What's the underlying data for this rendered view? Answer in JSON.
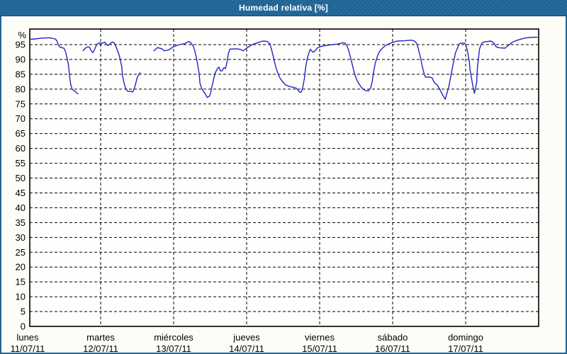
{
  "window": {
    "title": "Humedad relativa [%]"
  },
  "colors": {
    "titlebar_bg": "#1e6598",
    "window_border": "#1e6598",
    "title_text": "#ffffff",
    "content_bg": "#fdfdf8",
    "plot_bg": "#fefefc",
    "frame": "#000000",
    "grid": "#000000",
    "line": "#2424c8",
    "label_text": "#000000"
  },
  "chart_data": {
    "type": "line",
    "title": "Humedad relativa [%]",
    "ylabel": "%",
    "ylim": [
      0,
      100.3
    ],
    "y_ticks": [
      0,
      5,
      10,
      15,
      20,
      25,
      30,
      35,
      40,
      45,
      50,
      55,
      60,
      65,
      70,
      75,
      80,
      85,
      90,
      95
    ],
    "grid": "dashed",
    "legend": false,
    "x_unit": "days from lunes 11/07/11 00:00",
    "xlim": [
      0.03,
      7
    ],
    "x_days": [
      {
        "name": "lunes",
        "date": "11/07/11"
      },
      {
        "name": "martes",
        "date": "12/07/11"
      },
      {
        "name": "miércoles",
        "date": "13/07/11"
      },
      {
        "name": "jueves",
        "date": "14/07/11"
      },
      {
        "name": "viernes",
        "date": "15/07/11"
      },
      {
        "name": "sábado",
        "date": "16/07/11"
      },
      {
        "name": "domingo",
        "date": "17/07/11"
      }
    ],
    "series": [
      {
        "name": "Humedad relativa",
        "units": "%",
        "color": "#2424c8",
        "segments": [
          [
            [
              0.03,
              96.8
            ],
            [
              0.1,
              96.9
            ],
            [
              0.2,
              97.2
            ],
            [
              0.3,
              97.3
            ],
            [
              0.38,
              96.9
            ],
            [
              0.4,
              96.3
            ],
            [
              0.42,
              95.0
            ],
            [
              0.44,
              94.2
            ],
            [
              0.47,
              94.0
            ],
            [
              0.5,
              93.7
            ],
            [
              0.52,
              92.5
            ],
            [
              0.54,
              90.5
            ],
            [
              0.56,
              88.0
            ],
            [
              0.57,
              85.5
            ],
            [
              0.58,
              83.3
            ],
            [
              0.59,
              81.5
            ],
            [
              0.61,
              80.0
            ],
            [
              0.63,
              79.5
            ],
            [
              0.65,
              79.2
            ],
            [
              0.67,
              78.8
            ],
            [
              0.69,
              78.4
            ]
          ],
          [
            [
              0.76,
              93.0
            ],
            [
              0.79,
              93.8
            ],
            [
              0.83,
              94.3
            ],
            [
              0.85,
              94.0
            ],
            [
              0.87,
              93.0
            ],
            [
              0.89,
              92.3
            ],
            [
              0.91,
              92.9
            ],
            [
              0.93,
              94.2
            ],
            [
              0.95,
              95.1
            ],
            [
              0.98,
              95.6
            ],
            [
              1.01,
              95.4
            ],
            [
              1.06,
              95.8
            ],
            [
              1.08,
              95.1
            ],
            [
              1.1,
              94.7
            ],
            [
              1.13,
              95.3
            ],
            [
              1.16,
              95.9
            ],
            [
              1.19,
              95.5
            ],
            [
              1.2,
              94.9
            ],
            [
              1.22,
              93.7
            ],
            [
              1.25,
              91.7
            ],
            [
              1.27,
              89.8
            ],
            [
              1.29,
              87.4
            ],
            [
              1.3,
              84.5
            ],
            [
              1.32,
              82.1
            ],
            [
              1.34,
              80.4
            ],
            [
              1.37,
              79.3
            ],
            [
              1.42,
              79.2
            ],
            [
              1.44,
              79.0
            ],
            [
              1.47,
              80.9
            ],
            [
              1.5,
              83.8
            ],
            [
              1.52,
              84.8
            ],
            [
              1.54,
              85.5
            ]
          ],
          [
            [
              1.73,
              92.9
            ],
            [
              1.76,
              93.6
            ],
            [
              1.78,
              94.0
            ],
            [
              1.84,
              93.6
            ],
            [
              1.87,
              92.9
            ],
            [
              1.93,
              93.2
            ],
            [
              2.0,
              94.3
            ],
            [
              2.07,
              94.9
            ],
            [
              2.15,
              95.3
            ],
            [
              2.21,
              96.1
            ],
            [
              2.24,
              95.5
            ],
            [
              2.27,
              94.4
            ],
            [
              2.29,
              92.9
            ],
            [
              2.31,
              90.8
            ],
            [
              2.33,
              88.2
            ],
            [
              2.35,
              85.0
            ],
            [
              2.36,
              82.0
            ],
            [
              2.38,
              80.5
            ],
            [
              2.4,
              79.5
            ],
            [
              2.43,
              78.5
            ],
            [
              2.46,
              77.2
            ],
            [
              2.49,
              77.6
            ],
            [
              2.51,
              79.0
            ],
            [
              2.53,
              81.5
            ],
            [
              2.55,
              83.5
            ],
            [
              2.57,
              85.5
            ],
            [
              2.6,
              86.9
            ],
            [
              2.62,
              87.4
            ],
            [
              2.64,
              86.2
            ],
            [
              2.66,
              86.1
            ],
            [
              2.69,
              87.2
            ],
            [
              2.71,
              86.9
            ],
            [
              2.73,
              89.0
            ],
            [
              2.75,
              92.0
            ],
            [
              2.77,
              93.5
            ],
            [
              2.87,
              93.6
            ],
            [
              2.92,
              93.3
            ],
            [
              2.95,
              92.9
            ],
            [
              3.0,
              93.8
            ],
            [
              3.04,
              94.4
            ],
            [
              3.07,
              94.9
            ],
            [
              3.11,
              95.3
            ],
            [
              3.16,
              95.7
            ],
            [
              3.22,
              96.2
            ],
            [
              3.28,
              96.1
            ],
            [
              3.32,
              95.2
            ],
            [
              3.34,
              93.4
            ],
            [
              3.36,
              91.5
            ],
            [
              3.38,
              89.4
            ],
            [
              3.4,
              87.4
            ],
            [
              3.42,
              85.8
            ],
            [
              3.45,
              84.0
            ],
            [
              3.49,
              82.5
            ],
            [
              3.53,
              81.5
            ],
            [
              3.58,
              80.9
            ],
            [
              3.64,
              80.6
            ],
            [
              3.68,
              80.3
            ],
            [
              3.71,
              79.4
            ],
            [
              3.73,
              78.9
            ],
            [
              3.75,
              79.1
            ],
            [
              3.77,
              80.7
            ],
            [
              3.79,
              83.5
            ],
            [
              3.81,
              87.6
            ],
            [
              3.83,
              90.3
            ],
            [
              3.85,
              92.0
            ],
            [
              3.87,
              93.4
            ],
            [
              3.89,
              92.9
            ],
            [
              3.91,
              92.4
            ],
            [
              3.94,
              93.0
            ],
            [
              3.97,
              93.9
            ],
            [
              4.01,
              94.3
            ],
            [
              4.06,
              94.6
            ],
            [
              4.12,
              94.8
            ],
            [
              4.18,
              95.0
            ],
            [
              4.25,
              95.2
            ],
            [
              4.31,
              95.6
            ],
            [
              4.35,
              95.5
            ],
            [
              4.37,
              94.8
            ],
            [
              4.39,
              93.6
            ],
            [
              4.41,
              91.9
            ],
            [
              4.43,
              90.0
            ],
            [
              4.45,
              87.9
            ],
            [
              4.47,
              85.9
            ],
            [
              4.49,
              84.3
            ],
            [
              4.52,
              82.5
            ],
            [
              4.56,
              81.0
            ],
            [
              4.59,
              80.0
            ],
            [
              4.63,
              79.5
            ],
            [
              4.67,
              79.4
            ],
            [
              4.7,
              80.5
            ],
            [
              4.72,
              82.6
            ],
            [
              4.74,
              85.8
            ],
            [
              4.76,
              88.6
            ],
            [
              4.79,
              91.0
            ],
            [
              4.82,
              92.7
            ],
            [
              4.86,
              93.8
            ],
            [
              4.91,
              94.8
            ],
            [
              4.97,
              95.5
            ],
            [
              5.06,
              96.2
            ],
            [
              5.16,
              96.3
            ],
            [
              5.26,
              96.5
            ],
            [
              5.3,
              96.2
            ],
            [
              5.33,
              95.4
            ],
            [
              5.35,
              93.8
            ],
            [
              5.37,
              91.8
            ],
            [
              5.39,
              89.5
            ],
            [
              5.41,
              87.2
            ],
            [
              5.43,
              85.3
            ],
            [
              5.45,
              84.0
            ],
            [
              5.5,
              84.1
            ],
            [
              5.54,
              83.8
            ],
            [
              5.57,
              82.2
            ],
            [
              5.61,
              81.4
            ],
            [
              5.64,
              80.2
            ],
            [
              5.69,
              77.8
            ],
            [
              5.72,
              76.6
            ],
            [
              5.77,
              80.9
            ],
            [
              5.82,
              87.4
            ],
            [
              5.86,
              92.2
            ],
            [
              5.91,
              95.1
            ],
            [
              5.93,
              95.5
            ],
            [
              5.99,
              95.5
            ],
            [
              6.01,
              94.3
            ],
            [
              6.03,
              92.2
            ],
            [
              6.05,
              89.4
            ],
            [
              6.06,
              86.5
            ],
            [
              6.08,
              83.8
            ],
            [
              6.1,
              80.9
            ],
            [
              6.12,
              78.6
            ],
            [
              6.15,
              82.1
            ],
            [
              6.16,
              87.0
            ],
            [
              6.19,
              93.6
            ],
            [
              6.22,
              95.4
            ],
            [
              6.25,
              95.9
            ],
            [
              6.35,
              96.2
            ],
            [
              6.39,
              95.4
            ],
            [
              6.42,
              94.2
            ],
            [
              6.47,
              93.9
            ],
            [
              6.54,
              93.8
            ],
            [
              6.58,
              94.6
            ],
            [
              6.64,
              95.8
            ],
            [
              6.71,
              96.5
            ],
            [
              6.81,
              97.2
            ],
            [
              6.87,
              97.4
            ],
            [
              6.98,
              97.5
            ]
          ]
        ]
      }
    ]
  }
}
